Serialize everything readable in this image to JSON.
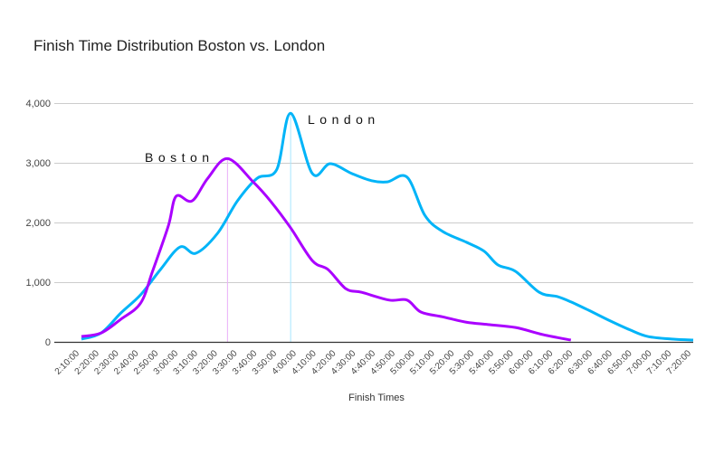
{
  "chart_data": {
    "type": "line",
    "title": "Finish Time Distribution Boston vs. London",
    "xlabel": "Finish Times",
    "ylabel": "",
    "x_unit": "minutes",
    "xlim": [
      130,
      440
    ],
    "ylim": [
      0,
      4000
    ],
    "y_ticks": [
      0,
      1000,
      2000,
      3000,
      4000
    ],
    "y_tick_labels": [
      "0",
      "1,000",
      "2,000",
      "3,000",
      "4,000"
    ],
    "x_tick_labels": [
      "2:10:00",
      "2:20:00",
      "2:30:00",
      "2:40:00",
      "2:50:00",
      "3:00:00",
      "3:10:00",
      "3:20:00",
      "3:30:00",
      "3:40:00",
      "3:50:00",
      "4:00:00",
      "4:10:00",
      "4:20:00",
      "4:30:00",
      "4:40:00",
      "4:50:00",
      "5:00:00",
      "5:10:00",
      "5:20:00",
      "5:30:00",
      "5:40:00",
      "5:50:00",
      "6:00:00",
      "6:10:00",
      "6:20:00",
      "6:30:00",
      "6:40:00",
      "6:50:00",
      "7:00:00",
      "7:10:00",
      "7:20:00"
    ],
    "grid": true,
    "legend": "none",
    "annotations": [
      {
        "text": "Boston",
        "series": "Boston",
        "x": 204
      },
      {
        "text": "London",
        "series": "London",
        "x": 236
      }
    ],
    "series": [
      {
        "name": "London",
        "color": "#00b4f8",
        "marker_color": "#a8e6ff",
        "x": [
          130,
          140,
          150,
          160,
          170,
          180,
          188,
          199,
          209,
          219,
          229,
          236,
          247,
          256,
          267,
          277,
          285,
          295,
          304,
          313,
          325,
          334,
          341,
          350,
          362,
          371,
          378,
          387,
          398,
          408,
          417,
          430,
          440
        ],
        "values": [
          45,
          150,
          485,
          790,
          1210,
          1590,
          1485,
          1820,
          2360,
          2740,
          2890,
          3830,
          2820,
          2985,
          2820,
          2700,
          2680,
          2760,
          2120,
          1850,
          1670,
          1520,
          1290,
          1180,
          830,
          760,
          670,
          530,
          350,
          200,
          90,
          45,
          30
        ]
      },
      {
        "name": "Boston",
        "color": "#aa00ff",
        "marker_color": "#eab0f8",
        "x": [
          130,
          140,
          150,
          160,
          166,
          174,
          178,
          186,
          194,
          204,
          217,
          226,
          236,
          247,
          255,
          264,
          272,
          286,
          295,
          302,
          313,
          325,
          336,
          350,
          364,
          378
        ],
        "values": [
          90,
          150,
          380,
          650,
          1180,
          1940,
          2440,
          2360,
          2740,
          3070,
          2680,
          2350,
          1910,
          1360,
          1210,
          890,
          830,
          700,
          700,
          500,
          420,
          330,
          290,
          240,
          120,
          30
        ]
      }
    ]
  }
}
